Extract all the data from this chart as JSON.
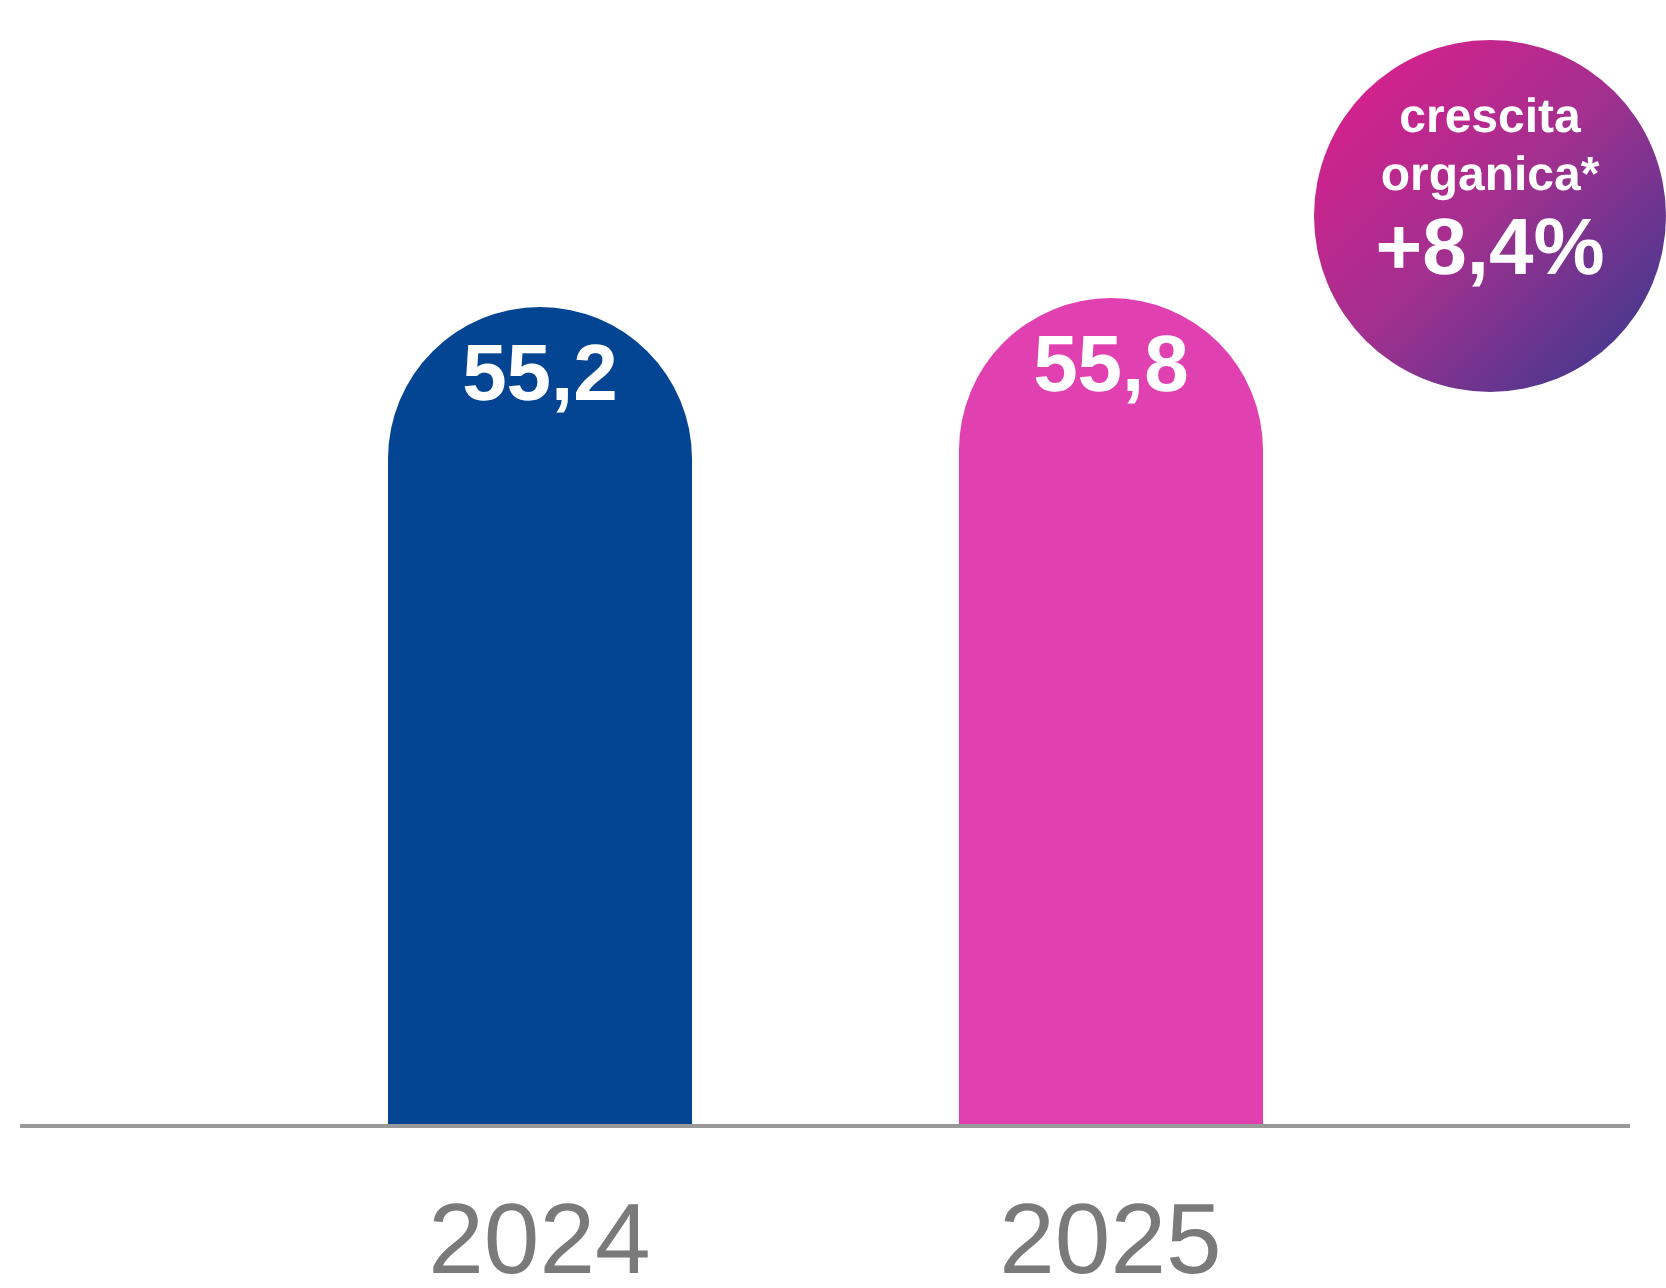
{
  "chart_data": {
    "type": "bar",
    "categories": [
      "2024",
      "2025"
    ],
    "values": [
      55.2,
      55.8
    ],
    "colors": [
      "#034592",
      "#e040b0"
    ],
    "value_labels": [
      "55,2",
      "55,8"
    ],
    "annotations": [
      "crescita organica*",
      "+8,4%"
    ],
    "legend": false,
    "grid": false
  }
}
